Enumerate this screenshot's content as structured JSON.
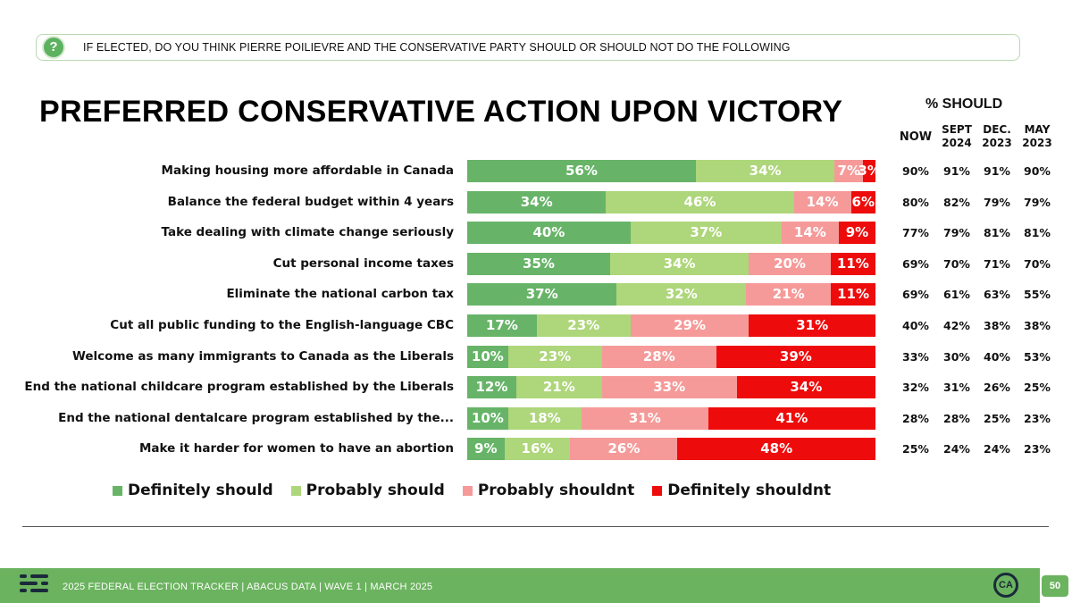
{
  "question": "IF ELECTED, DO YOU THINK PIERRE POILIEVRE AND THE CONSERVATIVE PARTY SHOULD OR SHOULD NOT DO THE FOLLOWING",
  "question_icon": "question-icon",
  "footer": {
    "text": "2025 FEDERAL ELECTION TRACKER | ABACUS DATA | WAVE 1 | MARCH 2025",
    "badge": "CA",
    "page_number": "50"
  },
  "trend": {
    "title": "% SHOULD",
    "columns": [
      "NOW",
      "SEPT 2024",
      "DEC. 2023",
      "MAY 2023"
    ],
    "rows": [
      [
        "90%",
        "91%",
        "91%",
        "90%"
      ],
      [
        "80%",
        "82%",
        "79%",
        "79%"
      ],
      [
        "77%",
        "79%",
        "81%",
        "81%"
      ],
      [
        "69%",
        "70%",
        "71%",
        "70%"
      ],
      [
        "69%",
        "61%",
        "63%",
        "55%"
      ],
      [
        "40%",
        "42%",
        "38%",
        "38%"
      ],
      [
        "33%",
        "30%",
        "40%",
        "53%"
      ],
      [
        "32%",
        "31%",
        "26%",
        "25%"
      ],
      [
        "28%",
        "28%",
        "25%",
        "23%"
      ],
      [
        "25%",
        "24%",
        "24%",
        "23%"
      ]
    ]
  },
  "chart_data": {
    "type": "bar",
    "orientation": "horizontal-stacked",
    "title": "PREFERRED CONSERVATIVE ACTION UPON VICTORY",
    "legend_position": "bottom",
    "categories": [
      "Making housing more affordable in Canada",
      "Balance the federal budget within 4 years",
      "Take dealing with climate change seriously",
      "Cut personal income taxes",
      "Eliminate the national carbon tax",
      "Cut all public funding to the English-language CBC",
      "Welcome as many immigrants to Canada as the Liberals",
      "End the national childcare program established by the Liberals",
      "End the national dentalcare program established by the...",
      "Make it harder for women to have an abortion"
    ],
    "series": [
      {
        "name": "Definitely should",
        "color": "#67b468",
        "values": [
          56,
          34,
          40,
          35,
          37,
          17,
          10,
          12,
          10,
          9
        ]
      },
      {
        "name": "Probably should",
        "color": "#aed67a",
        "values": [
          34,
          46,
          37,
          34,
          32,
          23,
          23,
          21,
          18,
          16
        ]
      },
      {
        "name": "Probably shouldnt",
        "color": "#f59a99",
        "values": [
          7,
          14,
          14,
          20,
          21,
          29,
          28,
          33,
          31,
          26
        ]
      },
      {
        "name": "Definitely shouldnt",
        "color": "#ee0b0b",
        "values": [
          3,
          6,
          9,
          11,
          11,
          31,
          39,
          34,
          41,
          48
        ]
      }
    ],
    "value_suffix": "%"
  }
}
